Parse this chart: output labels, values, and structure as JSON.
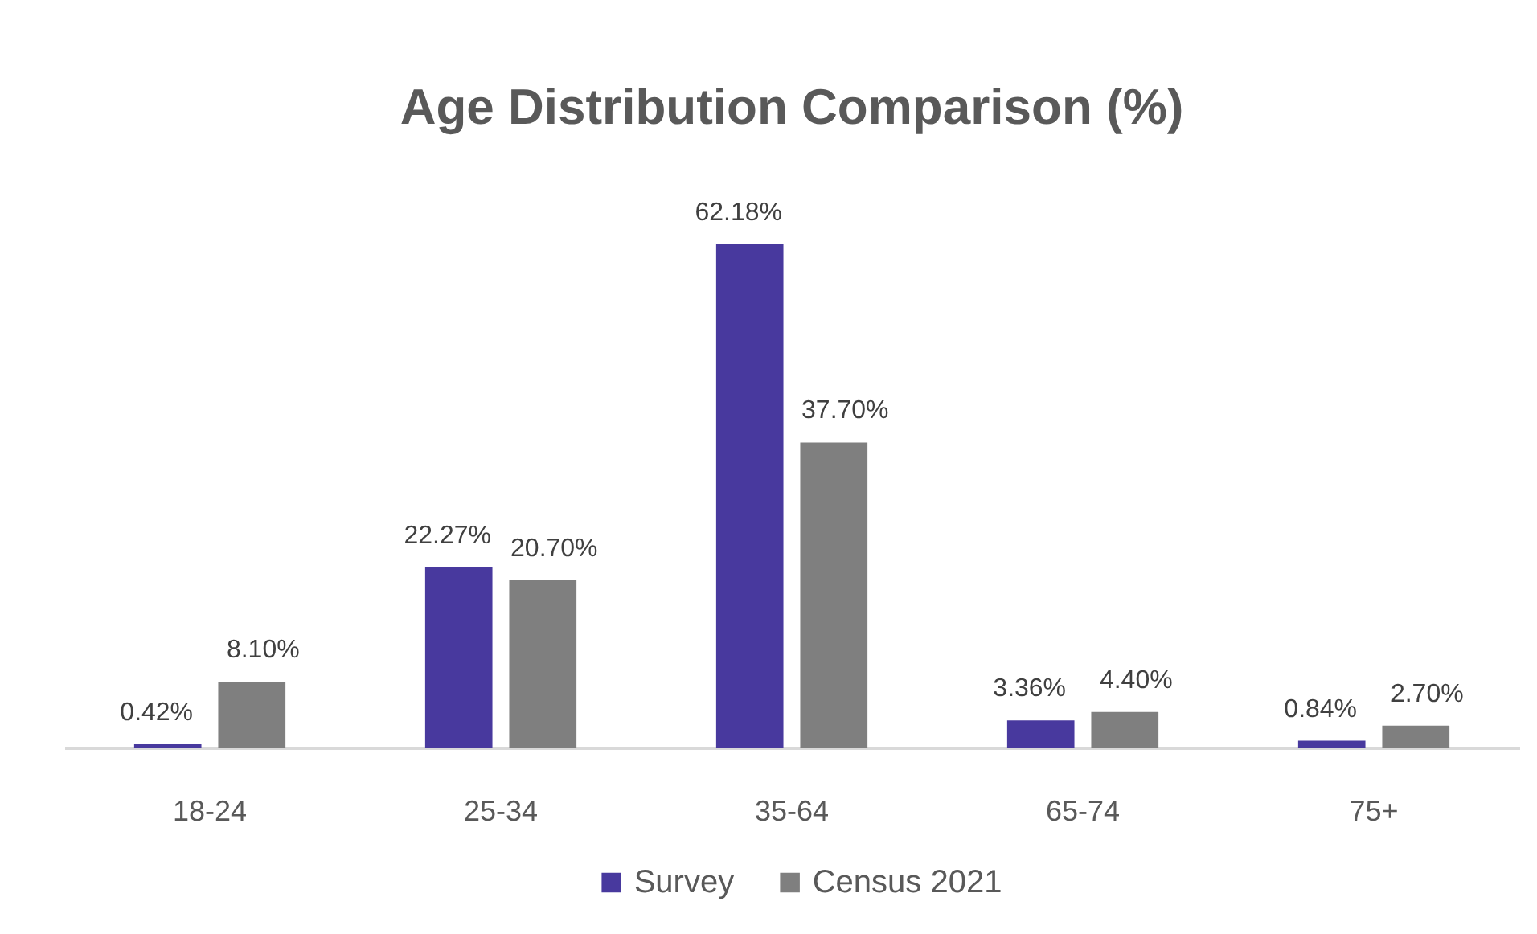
{
  "chart_data": {
    "type": "bar",
    "title": "Age Distribution Comparison (%)",
    "categories": [
      "18-24",
      "25-34",
      "35-64",
      "65-74",
      "75+"
    ],
    "series": [
      {
        "name": "Survey",
        "color": "#48399e",
        "values": [
          0.42,
          22.27,
          62.18,
          3.36,
          0.84
        ],
        "value_labels": [
          "0.42%",
          "22.27%",
          "62.18%",
          "3.36%",
          "0.84%"
        ]
      },
      {
        "name": "Census 2021",
        "color": "#7f7f7f",
        "values": [
          8.1,
          20.7,
          37.7,
          4.4,
          2.7
        ],
        "value_labels": [
          "8.10%",
          "20.70%",
          "37.70%",
          "4.40%",
          "2.70%"
        ]
      }
    ],
    "tick_labels": "x",
    "legend": "bottom"
  }
}
